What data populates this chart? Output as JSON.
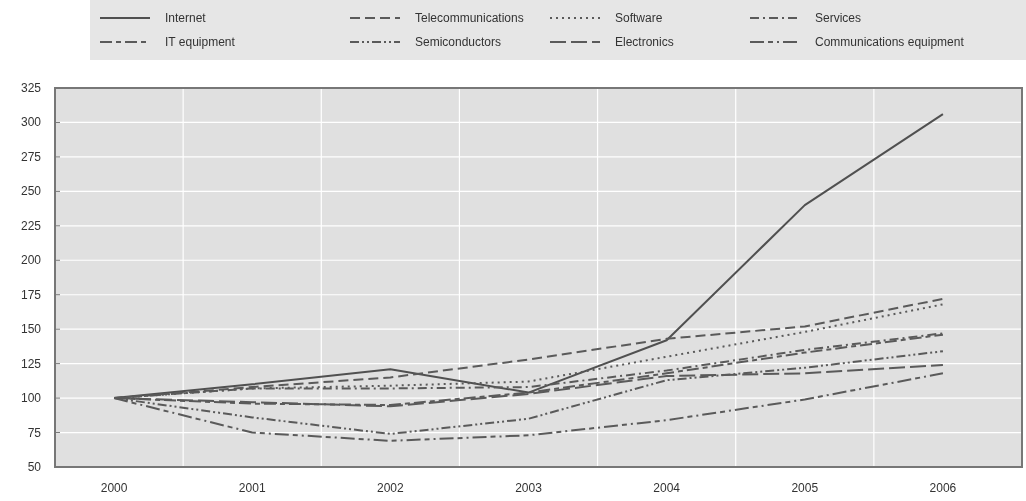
{
  "chart_data": {
    "type": "line",
    "categories": [
      "2000",
      "2001",
      "2002",
      "2003",
      "2004",
      "2005",
      "2006"
    ],
    "ylim": [
      50,
      325
    ],
    "yticks": [
      50,
      75,
      100,
      125,
      150,
      175,
      200,
      225,
      250,
      275,
      300,
      325
    ],
    "grid": true,
    "legend": "top",
    "series": [
      {
        "name": "Internet",
        "color": "#505050",
        "line_style": "solid",
        "values": [
          100,
          110,
          121,
          104,
          142,
          240,
          306
        ]
      },
      {
        "name": "Telecommunications",
        "color": "#5a5a5a",
        "line_style": "dashed",
        "values": [
          100,
          108,
          115,
          128,
          143,
          152,
          172
        ]
      },
      {
        "name": "Software",
        "color": "#5a5a5a",
        "line_style": "dotted",
        "values": [
          100,
          107,
          109,
          112,
          130,
          148,
          168
        ]
      },
      {
        "name": "Services",
        "color": "#5a5a5a",
        "line_style": "dashdot",
        "values": [
          100,
          107,
          107,
          108,
          120,
          135,
          147
        ]
      },
      {
        "name": "IT equipment",
        "color": "#5a5a5a",
        "line_style": "longdashdash",
        "values": [
          100,
          96,
          95,
          104,
          118,
          133,
          146
        ]
      },
      {
        "name": "Semiconductors",
        "color": "#5a5a5a",
        "line_style": "dashdotdot",
        "values": [
          100,
          86,
          74,
          85,
          113,
          122,
          134
        ]
      },
      {
        "name": "Electronics",
        "color": "#5a5a5a",
        "line_style": "longdash",
        "values": [
          100,
          97,
          94,
          103,
          116,
          118,
          124
        ]
      },
      {
        "name": "Communications equipment",
        "color": "#5a5a5a",
        "line_style": "longdashdot",
        "values": [
          100,
          75,
          69,
          73,
          84,
          99,
          118
        ]
      }
    ]
  }
}
